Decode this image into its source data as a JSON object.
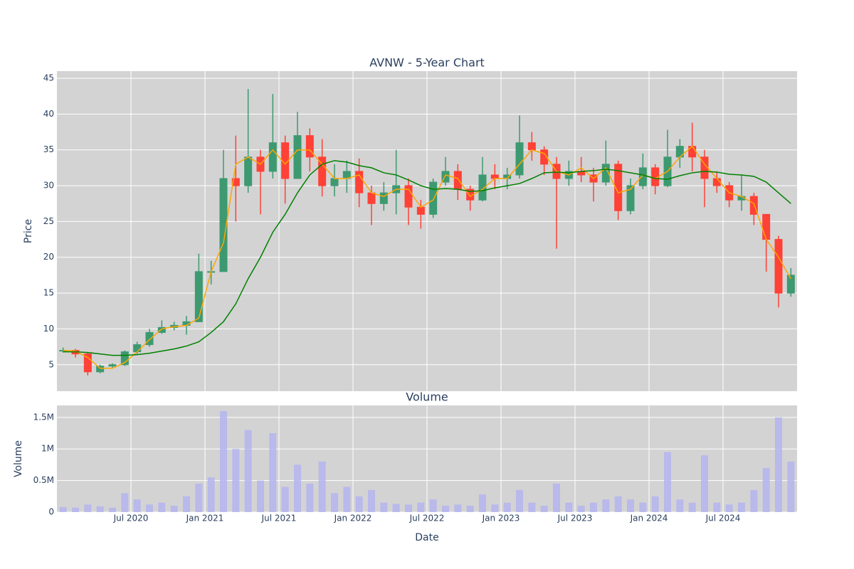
{
  "chart_data": [
    {
      "type": "candlestick",
      "title": "AVNW - 5-Year Chart",
      "y_label": "Price",
      "x": [
        "2020-01",
        "2020-02",
        "2020-03",
        "2020-04",
        "2020-05",
        "2020-06",
        "2020-07",
        "2020-08",
        "2020-09",
        "2020-10",
        "2020-11",
        "2020-12",
        "2021-01",
        "2021-02",
        "2021-03",
        "2021-04",
        "2021-05",
        "2021-06",
        "2021-07",
        "2021-08",
        "2021-09",
        "2021-10",
        "2021-11",
        "2021-12",
        "2022-01",
        "2022-02",
        "2022-03",
        "2022-04",
        "2022-05",
        "2022-06",
        "2022-07",
        "2022-08",
        "2022-09",
        "2022-10",
        "2022-11",
        "2022-12",
        "2023-01",
        "2023-02",
        "2023-03",
        "2023-04",
        "2023-05",
        "2023-06",
        "2023-07",
        "2023-08",
        "2023-09",
        "2023-10",
        "2023-11",
        "2023-12",
        "2024-01",
        "2024-02",
        "2024-03",
        "2024-04",
        "2024-05",
        "2024-06",
        "2024-07",
        "2024-08",
        "2024-09",
        "2024-10",
        "2024-11",
        "2024-12"
      ],
      "open": [
        7,
        7,
        6.5,
        4,
        4.8,
        5,
        6.8,
        7.8,
        9.5,
        10.2,
        10.5,
        11,
        18,
        18,
        31,
        30,
        34,
        32,
        36,
        31,
        37,
        34,
        30,
        31,
        32,
        29,
        27.5,
        29,
        30,
        27,
        26,
        30.5,
        32,
        29.5,
        28,
        31.5,
        31,
        31.5,
        36,
        35,
        33,
        31,
        32,
        31.5,
        30.5,
        33,
        26.5,
        30,
        32.5,
        30,
        34,
        35.5,
        34,
        31,
        30,
        28,
        28.5,
        26,
        22.5,
        15
      ],
      "high": [
        7.4,
        7.2,
        6.8,
        5,
        5.2,
        7,
        8.2,
        10,
        11.2,
        11,
        11.8,
        20.5,
        19.5,
        35,
        37,
        43.5,
        35,
        42.8,
        37,
        40.3,
        38,
        36.5,
        33,
        33.5,
        33.8,
        30,
        30.5,
        35,
        31,
        28,
        31,
        34,
        33,
        30,
        34,
        33,
        32.5,
        39.8,
        37.5,
        35.5,
        34,
        33.5,
        34,
        32.5,
        36.3,
        33.5,
        31,
        34.5,
        33,
        37.8,
        36.5,
        38.8,
        35,
        32,
        30.5,
        31.5,
        29,
        26,
        23,
        18.5
      ],
      "low": [
        6.7,
        6,
        3.5,
        3.8,
        4.5,
        4.8,
        6.5,
        7.5,
        9.3,
        9.8,
        9.2,
        11,
        16.2,
        18,
        25,
        29,
        26,
        31,
        27.5,
        31,
        32,
        28.5,
        28.5,
        29,
        27,
        24.5,
        26.5,
        26,
        24.5,
        24,
        25.5,
        30,
        28,
        26.5,
        27.8,
        29.5,
        29.5,
        31,
        33.5,
        31.5,
        21.2,
        30,
        30.5,
        27.8,
        30,
        25.2,
        26,
        29.5,
        28.8,
        29.8,
        32.5,
        32,
        27,
        29,
        27,
        26.5,
        24.5,
        18,
        13,
        14.5
      ],
      "close": [
        7,
        6.5,
        4,
        4.8,
        5,
        6.8,
        7.8,
        9.5,
        10.2,
        10.5,
        11,
        18,
        18,
        31,
        30,
        34,
        32,
        36,
        31,
        37,
        34,
        30,
        31,
        32,
        29,
        27.5,
        29,
        30,
        27,
        26,
        30.5,
        32,
        29.5,
        28,
        31.5,
        31,
        31.5,
        36,
        35,
        33,
        31,
        32,
        31.5,
        30.5,
        33,
        26.5,
        30,
        32.5,
        30,
        34,
        35.5,
        34,
        31,
        30,
        28,
        28.5,
        26,
        22.5,
        15,
        17.5
      ],
      "up_color": "#3d9970",
      "down_color": "#ff4136",
      "lines": [
        {
          "color": "#ffa500",
          "values": [
            7,
            6.9,
            6,
            4.5,
            4.5,
            5.3,
            6.8,
            8.5,
            10,
            10.3,
            10.5,
            11.5,
            18,
            22,
            33,
            34,
            33,
            35,
            33,
            35,
            35,
            33,
            31,
            31,
            31.5,
            29,
            28.5,
            29.5,
            29.5,
            27,
            28,
            31.5,
            31,
            28.5,
            29.5,
            31,
            31,
            33,
            35,
            34.5,
            32,
            31.5,
            32.5,
            31,
            32.5,
            29,
            29.5,
            31.5,
            31,
            32,
            34,
            35.5,
            33,
            31,
            29,
            28.5,
            27.5,
            22.5,
            20,
            17
          ]
        },
        {
          "color": "#008000",
          "values": [
            6.8,
            6.8,
            6.7,
            6.5,
            6.3,
            6.3,
            6.4,
            6.6,
            6.9,
            7.2,
            7.6,
            8.2,
            9.5,
            11,
            13.5,
            17,
            20,
            23.5,
            26,
            29,
            31.5,
            33,
            33.5,
            33.3,
            32.8,
            32.5,
            31.8,
            31.5,
            30.8,
            30,
            29.5,
            29.6,
            29.5,
            29.2,
            29.3,
            29.7,
            30,
            30.3,
            31,
            31.8,
            31.9,
            31.8,
            32,
            32.1,
            32.3,
            32.1,
            31.8,
            31.5,
            31,
            30.9,
            31.4,
            31.8,
            32,
            31.9,
            31.6,
            31.5,
            31.3,
            30.5,
            29,
            27.5
          ]
        }
      ],
      "xlim": [
        "2020-01",
        "2025-01"
      ],
      "xticks": [
        "2020-07",
        "2021-01",
        "2021-07",
        "2022-01",
        "2022-07",
        "2023-01",
        "2023-07",
        "2024-01",
        "2024-07"
      ],
      "ylim": [
        1.3,
        46
      ],
      "yticks": [
        5,
        10,
        15,
        20,
        25,
        30,
        35,
        40,
        45
      ],
      "grid": true,
      "background": "#d3d3d3"
    },
    {
      "type": "bar",
      "title": "Volume",
      "y_label": "Volume",
      "x_label": "Date",
      "x": [
        "2020-01",
        "2020-02",
        "2020-03",
        "2020-04",
        "2020-05",
        "2020-06",
        "2020-07",
        "2020-08",
        "2020-09",
        "2020-10",
        "2020-11",
        "2020-12",
        "2021-01",
        "2021-02",
        "2021-03",
        "2021-04",
        "2021-05",
        "2021-06",
        "2021-07",
        "2021-08",
        "2021-09",
        "2021-10",
        "2021-11",
        "2021-12",
        "2022-01",
        "2022-02",
        "2022-03",
        "2022-04",
        "2022-05",
        "2022-06",
        "2022-07",
        "2022-08",
        "2022-09",
        "2022-10",
        "2022-11",
        "2022-12",
        "2023-01",
        "2023-02",
        "2023-03",
        "2023-04",
        "2023-05",
        "2023-06",
        "2023-07",
        "2023-08",
        "2023-09",
        "2023-10",
        "2023-11",
        "2023-12",
        "2024-01",
        "2024-02",
        "2024-03",
        "2024-04",
        "2024-05",
        "2024-06",
        "2024-07",
        "2024-08",
        "2024-09",
        "2024-10",
        "2024-11",
        "2024-12"
      ],
      "values": [
        80000,
        70000,
        120000,
        90000,
        70000,
        300000,
        200000,
        120000,
        150000,
        100000,
        250000,
        450000,
        550000,
        1600000,
        1000000,
        1300000,
        500000,
        1250000,
        400000,
        750000,
        450000,
        800000,
        300000,
        400000,
        250000,
        350000,
        150000,
        130000,
        120000,
        150000,
        200000,
        100000,
        120000,
        100000,
        280000,
        120000,
        150000,
        350000,
        150000,
        100000,
        450000,
        150000,
        100000,
        150000,
        200000,
        250000,
        200000,
        150000,
        250000,
        950000,
        200000,
        150000,
        900000,
        150000,
        120000,
        150000,
        350000,
        700000,
        1500000,
        800000
      ],
      "color": "#b4b4ee",
      "xlim": [
        "2020-01",
        "2025-01"
      ],
      "xticks": [
        {
          "value": "2020-07",
          "label": "Jul 2020"
        },
        {
          "value": "2021-01",
          "label": "Jan 2021"
        },
        {
          "value": "2021-07",
          "label": "Jul 2021"
        },
        {
          "value": "2022-01",
          "label": "Jan 2022"
        },
        {
          "value": "2022-07",
          "label": "Jul 2022"
        },
        {
          "value": "2023-01",
          "label": "Jan 2023"
        },
        {
          "value": "2023-07",
          "label": "Jul 2023"
        },
        {
          "value": "2024-01",
          "label": "Jan 2024"
        },
        {
          "value": "2024-07",
          "label": "Jul 2024"
        }
      ],
      "ylim": [
        0,
        1690000
      ],
      "yticks": [
        0,
        {
          "value": 500000,
          "label": "0.5M"
        },
        {
          "value": 1000000,
          "label": "1M"
        },
        {
          "value": 1500000,
          "label": "1.5M"
        }
      ],
      "grid": true,
      "background": "#d3d3d3"
    }
  ]
}
